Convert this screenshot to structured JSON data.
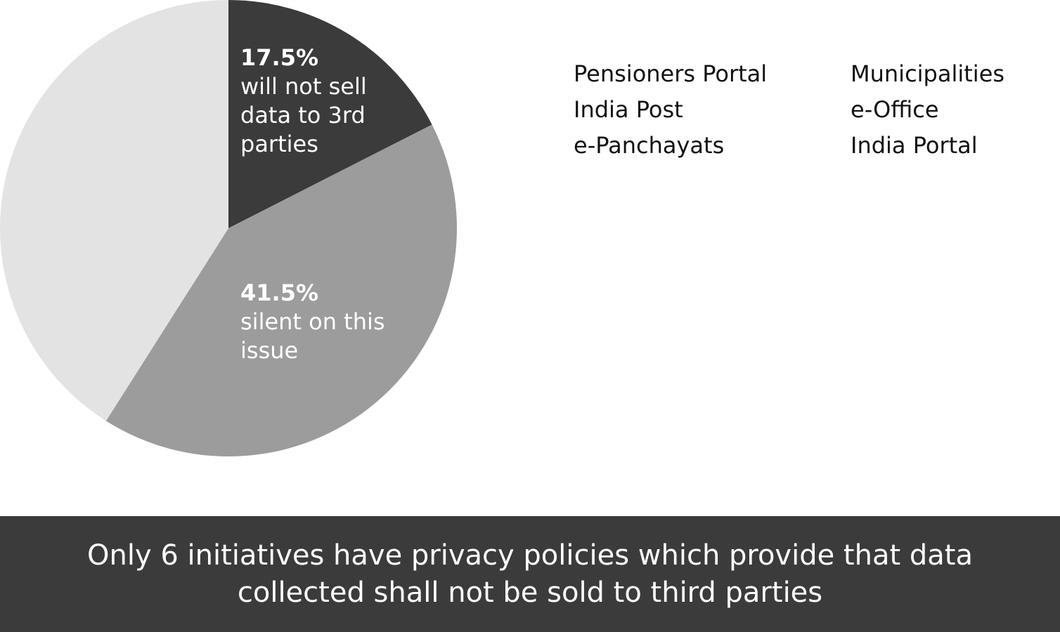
{
  "chart_data": {
    "type": "pie",
    "categories": [
      "will not sell data to 3rd parties",
      "silent on this issue",
      null
    ],
    "values": [
      17.5,
      41.5,
      41
    ],
    "value_labels": [
      "17.5%",
      "41.5%",
      null
    ],
    "colors": [
      "#3b3b3b",
      "#9c9c9c",
      "#e3e3e3"
    ]
  },
  "initiatives": [
    "Pensioners Portal",
    "India Post",
    "e-Panchayats",
    "Municipalities",
    "e-Office",
    "India Portal"
  ],
  "footer": "Only 6 initiatives have privacy policies which provide that data collected shall not be sold to third parties"
}
